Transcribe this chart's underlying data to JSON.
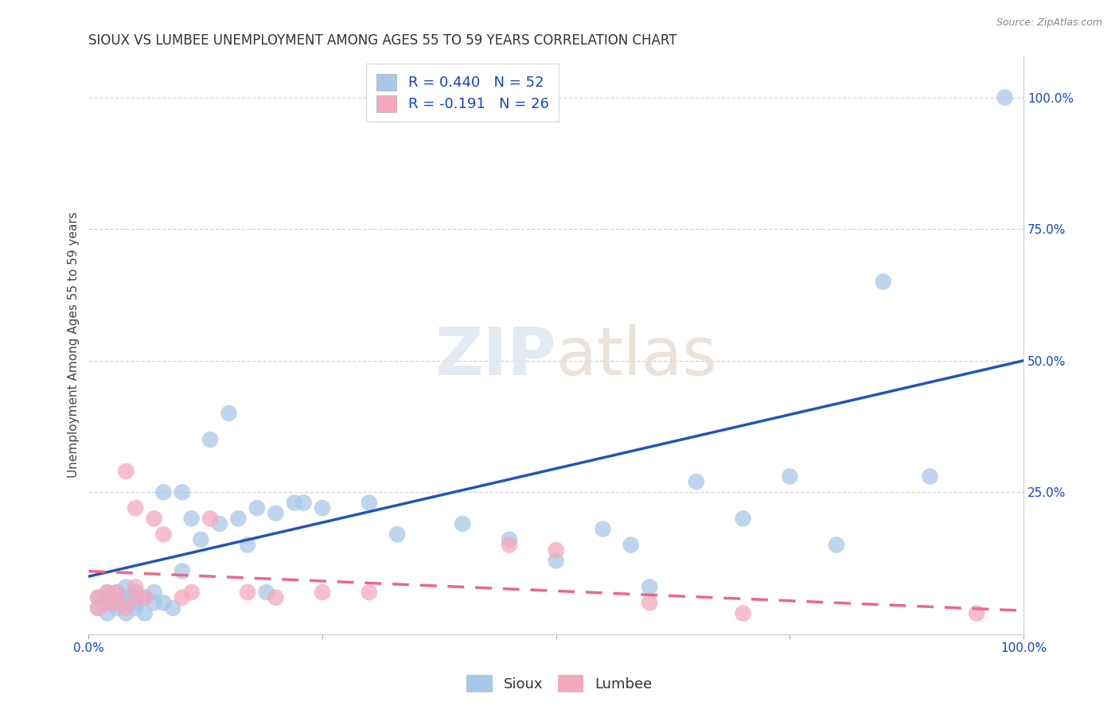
{
  "title": "SIOUX VS LUMBEE UNEMPLOYMENT AMONG AGES 55 TO 59 YEARS CORRELATION CHART",
  "source": "Source: ZipAtlas.com",
  "ylabel": "Unemployment Among Ages 55 to 59 years",
  "xlim": [
    0,
    1.0
  ],
  "ylim": [
    -0.02,
    1.08
  ],
  "xticks": [
    0.0,
    0.25,
    0.5,
    0.75,
    1.0
  ],
  "xticklabels": [
    "0.0%",
    "",
    "",
    "",
    "100.0%"
  ],
  "ytick_positions": [
    0.25,
    0.5,
    0.75,
    1.0
  ],
  "ytick_labels": [
    "25.0%",
    "50.0%",
    "75.0%",
    "100.0%"
  ],
  "sioux_R": 0.44,
  "sioux_N": 52,
  "lumbee_R": -0.191,
  "lumbee_N": 26,
  "sioux_color": "#A8C8E8",
  "lumbee_color": "#F4A8BE",
  "sioux_line_color": "#2255BB",
  "lumbee_line_color": "#EE6688",
  "legend_R_color": "#1144CC",
  "background_color": "#FFFFFF",
  "grid_color": "#C8C8C8",
  "title_fontsize": 12,
  "axis_label_fontsize": 11,
  "tick_fontsize": 11,
  "sioux_x": [
    0.01,
    0.01,
    0.02,
    0.02,
    0.02,
    0.03,
    0.03,
    0.03,
    0.04,
    0.04,
    0.04,
    0.04,
    0.05,
    0.05,
    0.05,
    0.06,
    0.06,
    0.07,
    0.07,
    0.08,
    0.08,
    0.09,
    0.1,
    0.1,
    0.11,
    0.12,
    0.13,
    0.14,
    0.15,
    0.16,
    0.17,
    0.18,
    0.19,
    0.2,
    0.22,
    0.23,
    0.25,
    0.3,
    0.33,
    0.4,
    0.45,
    0.5,
    0.55,
    0.58,
    0.6,
    0.65,
    0.7,
    0.75,
    0.8,
    0.85,
    0.9,
    0.98
  ],
  "sioux_y": [
    0.03,
    0.05,
    0.02,
    0.04,
    0.06,
    0.03,
    0.04,
    0.06,
    0.02,
    0.04,
    0.05,
    0.07,
    0.03,
    0.04,
    0.06,
    0.02,
    0.05,
    0.04,
    0.06,
    0.04,
    0.25,
    0.03,
    0.25,
    0.1,
    0.2,
    0.16,
    0.35,
    0.19,
    0.4,
    0.2,
    0.15,
    0.22,
    0.06,
    0.21,
    0.23,
    0.23,
    0.22,
    0.23,
    0.17,
    0.19,
    0.16,
    0.12,
    0.18,
    0.15,
    0.07,
    0.27,
    0.2,
    0.28,
    0.15,
    0.65,
    0.28,
    1.0
  ],
  "lumbee_x": [
    0.01,
    0.01,
    0.02,
    0.02,
    0.03,
    0.03,
    0.04,
    0.04,
    0.05,
    0.05,
    0.05,
    0.06,
    0.07,
    0.08,
    0.1,
    0.11,
    0.13,
    0.17,
    0.2,
    0.25,
    0.3,
    0.45,
    0.5,
    0.6,
    0.7,
    0.95
  ],
  "lumbee_y": [
    0.03,
    0.05,
    0.04,
    0.06,
    0.04,
    0.06,
    0.29,
    0.03,
    0.22,
    0.05,
    0.07,
    0.05,
    0.2,
    0.17,
    0.05,
    0.06,
    0.2,
    0.06,
    0.05,
    0.06,
    0.06,
    0.15,
    0.14,
    0.04,
    0.02,
    0.02
  ],
  "sioux_line_x0": 0.0,
  "sioux_line_y0": 0.09,
  "sioux_line_x1": 1.0,
  "sioux_line_y1": 0.5,
  "lumbee_line_x0": 0.0,
  "lumbee_line_y0": 0.1,
  "lumbee_line_x1": 1.0,
  "lumbee_line_y1": 0.025
}
